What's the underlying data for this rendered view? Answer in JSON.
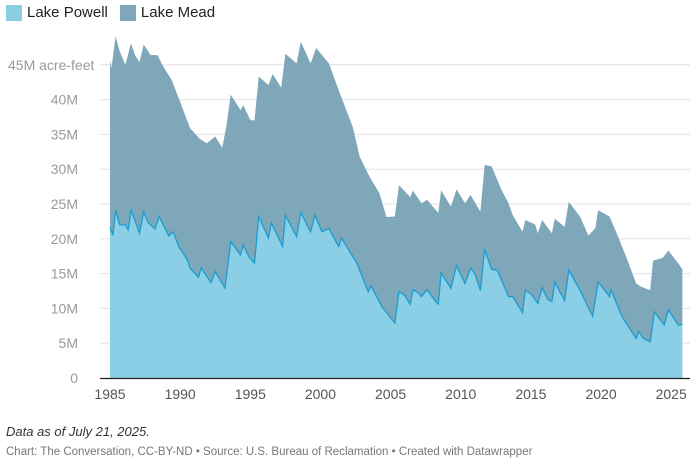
{
  "chart_data": {
    "type": "area",
    "stacked": true,
    "ylabel_unit": "acre-feet",
    "ylim": [
      0,
      45
    ],
    "xlim": [
      1985,
      2025.8
    ],
    "y_ticks": [
      "0",
      "5M",
      "10M",
      "15M",
      "20M",
      "25M",
      "30M",
      "35M",
      "40M",
      "45M acre-feet"
    ],
    "y_tick_values": [
      0,
      5,
      10,
      15,
      20,
      25,
      30,
      35,
      40,
      45
    ],
    "x_ticks": [
      "1985",
      "1990",
      "1995",
      "2000",
      "2005",
      "2010",
      "2015",
      "2020",
      "2025"
    ],
    "x_tick_values": [
      1985,
      1990,
      1995,
      2000,
      2005,
      2010,
      2015,
      2020,
      2025
    ],
    "grid": true,
    "legend_position": "top-left",
    "series": [
      {
        "name": "Lake Powell",
        "color": "#8acfe6",
        "line_color": "#1a9dcf",
        "unit": "million acre-feet",
        "points": [
          [
            1985.0,
            21.7
          ],
          [
            1985.2,
            20.5
          ],
          [
            1985.4,
            24.1
          ],
          [
            1985.7,
            22.0
          ],
          [
            1986.1,
            22.0
          ],
          [
            1986.3,
            21.3
          ],
          [
            1986.5,
            24.1
          ],
          [
            1986.8,
            22.5
          ],
          [
            1987.1,
            20.8
          ],
          [
            1987.4,
            23.9
          ],
          [
            1987.7,
            22.4
          ],
          [
            1988.2,
            21.4
          ],
          [
            1988.5,
            23.2
          ],
          [
            1989.2,
            20.4
          ],
          [
            1989.5,
            21.0
          ],
          [
            1989.9,
            18.9
          ],
          [
            1990.5,
            17.0
          ],
          [
            1990.7,
            15.8
          ],
          [
            1991.3,
            14.5
          ],
          [
            1991.5,
            15.8
          ],
          [
            1992.2,
            13.7
          ],
          [
            1992.5,
            15.3
          ],
          [
            1993.2,
            12.9
          ],
          [
            1993.6,
            19.6
          ],
          [
            1994.3,
            17.7
          ],
          [
            1994.5,
            19.1
          ],
          [
            1994.9,
            17.4
          ],
          [
            1995.3,
            16.5
          ],
          [
            1995.6,
            23.2
          ],
          [
            1996.3,
            20.1
          ],
          [
            1996.5,
            22.3
          ],
          [
            1997.3,
            18.9
          ],
          [
            1997.5,
            23.4
          ],
          [
            1998.3,
            20.3
          ],
          [
            1998.6,
            23.8
          ],
          [
            1999.3,
            21.0
          ],
          [
            1999.6,
            23.4
          ],
          [
            2000.1,
            21.0
          ],
          [
            2000.6,
            21.5
          ],
          [
            2001.3,
            18.9
          ],
          [
            2001.5,
            20.1
          ],
          [
            2002.6,
            16.5
          ],
          [
            2003.4,
            12.4
          ],
          [
            2003.6,
            13.2
          ],
          [
            2004.4,
            10.2
          ],
          [
            2005.3,
            7.9
          ],
          [
            2005.6,
            12.4
          ],
          [
            2006.0,
            11.9
          ],
          [
            2006.4,
            10.6
          ],
          [
            2006.6,
            12.7
          ],
          [
            2007.0,
            12.2
          ],
          [
            2007.2,
            11.7
          ],
          [
            2007.6,
            12.7
          ],
          [
            2008.2,
            11.0
          ],
          [
            2008.4,
            10.6
          ],
          [
            2008.6,
            15.1
          ],
          [
            2009.3,
            12.9
          ],
          [
            2009.7,
            16.1
          ],
          [
            2010.3,
            13.6
          ],
          [
            2010.7,
            15.8
          ],
          [
            2011.0,
            15.0
          ],
          [
            2011.4,
            12.6
          ],
          [
            2011.7,
            18.5
          ],
          [
            2012.2,
            15.6
          ],
          [
            2012.6,
            15.5
          ],
          [
            2013.4,
            11.7
          ],
          [
            2013.7,
            11.7
          ],
          [
            2014.4,
            9.4
          ],
          [
            2014.6,
            12.6
          ],
          [
            2015.0,
            12.1
          ],
          [
            2015.5,
            10.7
          ],
          [
            2015.8,
            13.0
          ],
          [
            2016.2,
            11.3
          ],
          [
            2016.5,
            11.0
          ],
          [
            2016.7,
            13.8
          ],
          [
            2017.4,
            11.1
          ],
          [
            2017.7,
            15.5
          ],
          [
            2018.5,
            12.6
          ],
          [
            2019.4,
            8.9
          ],
          [
            2019.8,
            13.8
          ],
          [
            2020.6,
            11.7
          ],
          [
            2020.7,
            12.7
          ],
          [
            2021.5,
            8.8
          ],
          [
            2022.5,
            5.7
          ],
          [
            2022.7,
            6.7
          ],
          [
            2023.0,
            5.7
          ],
          [
            2023.5,
            5.2
          ],
          [
            2023.8,
            9.5
          ],
          [
            2024.5,
            7.6
          ],
          [
            2024.8,
            9.8
          ],
          [
            2025.5,
            7.6
          ],
          [
            2025.8,
            7.7
          ]
        ]
      },
      {
        "name": "Lake Mead",
        "color": "#7ea7b9",
        "unit": "million acre-feet",
        "points": [
          [
            1985.0,
            24.0
          ],
          [
            1985.1,
            23.4
          ],
          [
            1985.4,
            25.0
          ],
          [
            1985.7,
            24.9
          ],
          [
            1986.1,
            23.0
          ],
          [
            1986.5,
            24.0
          ],
          [
            1986.8,
            23.8
          ],
          [
            1987.1,
            24.6
          ],
          [
            1987.4,
            24.0
          ],
          [
            1987.9,
            24.4
          ],
          [
            1988.4,
            23.8
          ],
          [
            1988.7,
            22.7
          ],
          [
            1989.4,
            22.0
          ],
          [
            1990.0,
            21.1
          ],
          [
            1990.7,
            20.1
          ],
          [
            1991.4,
            19.2
          ],
          [
            1991.9,
            19.1
          ],
          [
            1992.5,
            19.4
          ],
          [
            1993.0,
            19.5
          ],
          [
            1993.3,
            21.6
          ],
          [
            1993.6,
            21.1
          ],
          [
            1994.3,
            20.8
          ],
          [
            1994.5,
            20.1
          ],
          [
            1995.0,
            19.9
          ],
          [
            1995.3,
            20.5
          ],
          [
            1995.6,
            20.1
          ],
          [
            1996.3,
            22.0
          ],
          [
            1996.6,
            21.8
          ],
          [
            1997.2,
            22.4
          ],
          [
            1997.5,
            23.2
          ],
          [
            1998.3,
            24.9
          ],
          [
            1998.6,
            24.5
          ],
          [
            1999.3,
            24.2
          ],
          [
            1999.7,
            24.5
          ],
          [
            2000.6,
            23.7
          ],
          [
            2001.4,
            21.3
          ],
          [
            2002.3,
            18.6
          ],
          [
            2002.8,
            16.3
          ],
          [
            2003.5,
            16.1
          ],
          [
            2004.2,
            15.6
          ],
          [
            2004.7,
            13.7
          ],
          [
            2005.3,
            15.3
          ],
          [
            2005.6,
            15.3
          ],
          [
            2006.4,
            15.4
          ],
          [
            2006.6,
            14.2
          ],
          [
            2007.2,
            13.4
          ],
          [
            2007.6,
            12.9
          ],
          [
            2008.4,
            13.1
          ],
          [
            2008.6,
            11.9
          ],
          [
            2009.3,
            11.7
          ],
          [
            2009.7,
            11.0
          ],
          [
            2010.3,
            11.5
          ],
          [
            2010.7,
            10.5
          ],
          [
            2011.4,
            11.3
          ],
          [
            2011.7,
            12.1
          ],
          [
            2012.2,
            14.8
          ],
          [
            2012.9,
            13.0
          ],
          [
            2013.4,
            13.4
          ],
          [
            2013.7,
            11.7
          ],
          [
            2014.4,
            11.6
          ],
          [
            2014.6,
            10.1
          ],
          [
            2015.3,
            10.8
          ],
          [
            2015.5,
            10.1
          ],
          [
            2015.8,
            9.7
          ],
          [
            2016.5,
            9.8
          ],
          [
            2016.7,
            9.1
          ],
          [
            2017.4,
            10.6
          ],
          [
            2017.7,
            9.8
          ],
          [
            2018.5,
            10.6
          ],
          [
            2019.1,
            10.3
          ],
          [
            2019.6,
            10.2
          ],
          [
            2019.8,
            10.3
          ],
          [
            2020.6,
            11.5
          ],
          [
            2021.2,
            10.1
          ],
          [
            2021.8,
            9.5
          ],
          [
            2022.5,
            7.9
          ],
          [
            2022.8,
            6.8
          ],
          [
            2023.5,
            7.4
          ],
          [
            2023.7,
            8.8
          ],
          [
            2024.4,
            9.4
          ],
          [
            2024.8,
            8.5
          ],
          [
            2025.5,
            8.9
          ],
          [
            2025.8,
            7.9
          ]
        ]
      }
    ]
  },
  "legend": {
    "items": [
      {
        "label": "Lake Powell",
        "color": "#8acfe6"
      },
      {
        "label": "Lake Mead",
        "color": "#7ea7b9"
      }
    ]
  },
  "footer": {
    "note": "Data as of July 21, 2025.",
    "credit": "Chart: The Conversation, CC-BY-ND • Source: U.S. Bureau of Reclamation • Created with Datawrapper"
  }
}
